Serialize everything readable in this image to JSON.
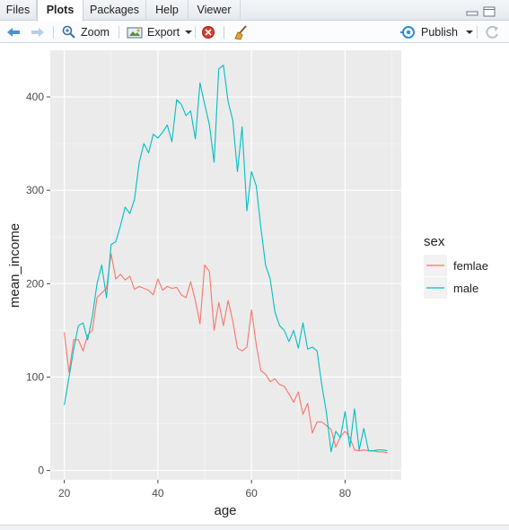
{
  "tabs": [
    {
      "label": "Files",
      "active": false
    },
    {
      "label": "Plots",
      "active": true
    },
    {
      "label": "Packages",
      "active": false
    },
    {
      "label": "Help",
      "active": false
    },
    {
      "label": "Viewer",
      "active": false
    }
  ],
  "toolbar": {
    "zoom_label": "Zoom",
    "export_label": "Export",
    "publish_label": "Publish"
  },
  "chart_data": {
    "type": "line",
    "xlabel": "age",
    "ylabel": "mean_income",
    "xlim": [
      17,
      92
    ],
    "ylim": [
      -10,
      450
    ],
    "xticks": [
      20,
      40,
      60,
      80
    ],
    "yticks": [
      0,
      100,
      200,
      300,
      400
    ],
    "legend_title": "sex",
    "legend_position": "right",
    "grid": true,
    "series": [
      {
        "name": "femlae",
        "color": "#f8766d",
        "x": [
          20,
          21,
          22,
          23,
          24,
          25,
          26,
          27,
          28,
          29,
          30,
          31,
          32,
          33,
          34,
          35,
          36,
          37,
          38,
          39,
          40,
          41,
          42,
          43,
          44,
          45,
          46,
          47,
          48,
          49,
          50,
          51,
          52,
          53,
          54,
          55,
          56,
          57,
          58,
          59,
          60,
          61,
          62,
          63,
          64,
          65,
          66,
          67,
          68,
          69,
          70,
          71,
          72,
          73,
          74,
          75,
          76,
          77,
          78,
          79,
          80,
          81,
          82,
          83,
          84,
          85,
          86,
          87,
          88,
          89
        ],
        "values": [
          148,
          105,
          140,
          140,
          128,
          145,
          150,
          185,
          190,
          195,
          232,
          205,
          210,
          204,
          208,
          194,
          197,
          195,
          193,
          188,
          205,
          193,
          197,
          195,
          196,
          188,
          185,
          202,
          182,
          157,
          220,
          213,
          150,
          180,
          155,
          182,
          160,
          131,
          128,
          132,
          172,
          135,
          107,
          103,
          95,
          98,
          92,
          90,
          82,
          73,
          84,
          60,
          72,
          40,
          52,
          52,
          48,
          44,
          25,
          36,
          42,
          35,
          22,
          21,
          22,
          21,
          21,
          20,
          20,
          19
        ]
      },
      {
        "name": "male",
        "color": "#00bfc4",
        "x": [
          20,
          21,
          22,
          23,
          24,
          25,
          26,
          27,
          28,
          29,
          30,
          31,
          32,
          33,
          34,
          35,
          36,
          37,
          38,
          39,
          40,
          41,
          42,
          43,
          44,
          45,
          46,
          47,
          48,
          49,
          50,
          51,
          52,
          53,
          54,
          55,
          56,
          57,
          58,
          59,
          60,
          61,
          62,
          63,
          64,
          65,
          66,
          67,
          68,
          69,
          70,
          71,
          72,
          73,
          74,
          75,
          76,
          77,
          78,
          79,
          80,
          81,
          82,
          83,
          84,
          85,
          86,
          87,
          88,
          89
        ],
        "values": [
          70,
          100,
          130,
          155,
          158,
          140,
          165,
          200,
          220,
          185,
          242,
          245,
          262,
          282,
          275,
          290,
          330,
          350,
          340,
          360,
          356,
          362,
          370,
          352,
          397,
          392,
          380,
          385,
          355,
          415,
          392,
          370,
          330,
          430,
          434,
          395,
          375,
          320,
          368,
          278,
          320,
          305,
          260,
          220,
          205,
          170,
          155,
          150,
          138,
          150,
          131,
          158,
          130,
          132,
          128,
          92,
          62,
          20,
          42,
          35,
          63,
          25,
          66,
          22,
          45,
          21,
          21,
          22,
          22,
          21
        ]
      }
    ]
  }
}
